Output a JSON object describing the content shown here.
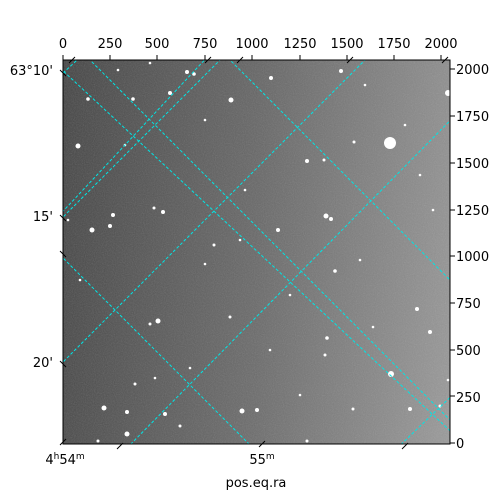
{
  "image": {
    "description_free": true,
    "axes": {
      "bottom": {
        "label": "pos.eq.ra",
        "ticks": [
          {
            "text": "4h54m",
            "main": "4",
            "sup1": "h",
            "num2": "54",
            "sup2": "m",
            "value": 0
          },
          {
            "text": "55m",
            "main": "55",
            "sup1": "m",
            "value": 1
          }
        ]
      },
      "left": {
        "ticks": [
          "63°10'",
          "15'",
          "20'"
        ]
      },
      "top": {
        "ticks": [
          "0",
          "250",
          "500",
          "750",
          "1000",
          "1250",
          "1500",
          "1750",
          "2000"
        ]
      },
      "right": {
        "ticks": [
          "0",
          "250",
          "500",
          "750",
          "1000",
          "1250",
          "1500",
          "1750",
          "2000"
        ]
      }
    },
    "colors": {
      "grid": "#00e5e5",
      "frame": "#000000",
      "background": "#ffffff"
    }
  }
}
